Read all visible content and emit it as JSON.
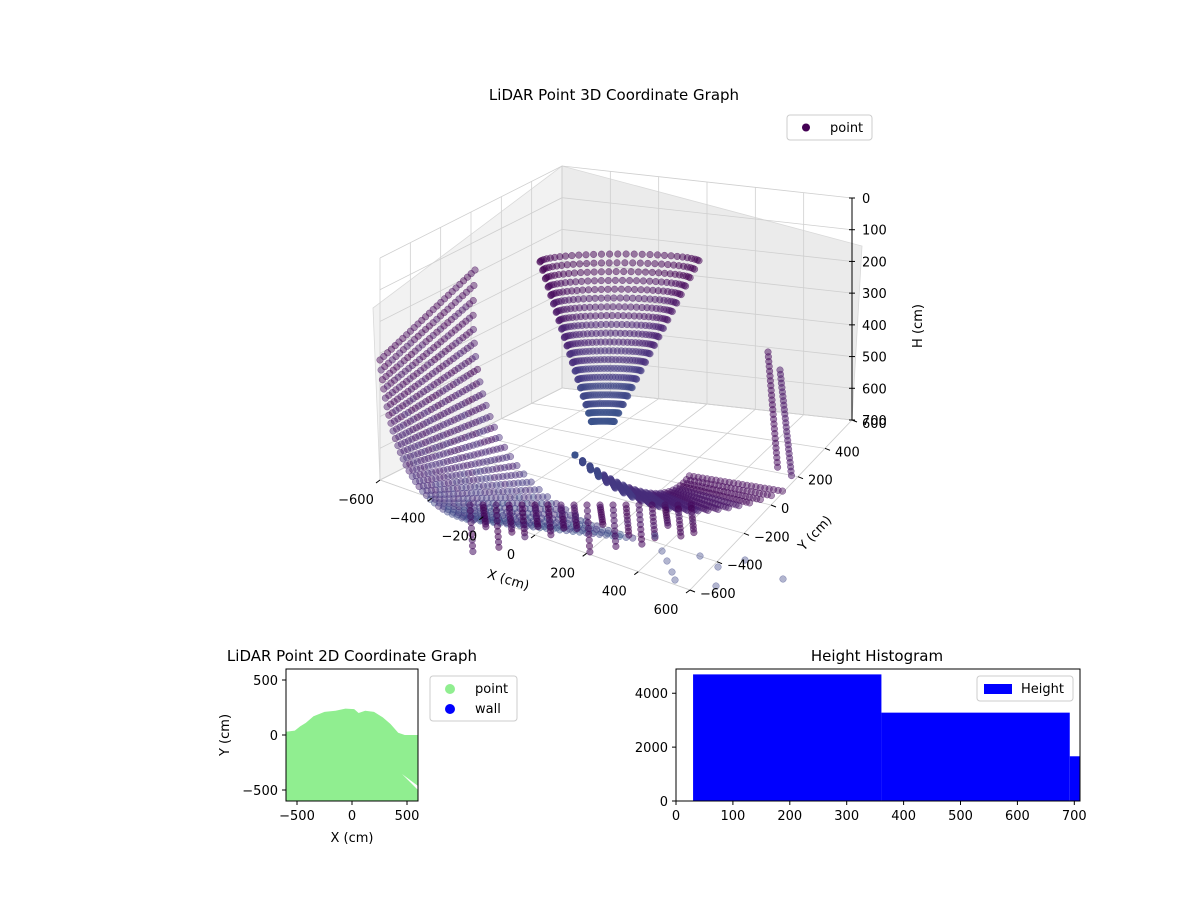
{
  "chart_data": [
    {
      "type": "scatter",
      "projection": "3d",
      "title": "LiDAR Point 3D Coordinate Graph",
      "xlabel": "X (cm)",
      "ylabel": "Y (cm)",
      "zlabel": "H (cm)",
      "xlim": [
        -600,
        600
      ],
      "ylim": [
        -600,
        600
      ],
      "zlim": [
        0,
        700
      ],
      "z_inverted": true,
      "x_ticks": [
        "−600",
        "−400",
        "−200",
        "0",
        "200",
        "400",
        "600"
      ],
      "y_ticks": [
        "−600",
        "−400",
        "−200",
        "0",
        "200",
        "400",
        "600"
      ],
      "z_ticks": [
        "0",
        "100",
        "200",
        "300",
        "400",
        "500",
        "600",
        "700"
      ],
      "grid": true,
      "legend": {
        "placement": "top-right",
        "entries": [
          {
            "label": "point",
            "color": "#440154"
          }
        ]
      },
      "colormap": "viridis",
      "shape": "dense point cloud forming a bowl: central cone fan near the top, curved arcs sweeping down to the left and toward the front-right, scattered isolated points at the front edge"
    },
    {
      "type": "scatter",
      "title": "LiDAR Point 2D Coordinate Graph",
      "xlabel": "X (cm)",
      "ylabel": "Y (cm)",
      "xlim": [
        -600,
        600
      ],
      "ylim": [
        -600,
        600
      ],
      "x_ticks": [
        "−500",
        "0",
        "500"
      ],
      "y_ticks": [
        "−500",
        "0",
        "500"
      ],
      "legend": {
        "placement": "outside-right",
        "entries": [
          {
            "label": "point",
            "color": "#90ee90"
          },
          {
            "label": "wall",
            "color": "#0000ff"
          }
        ]
      },
      "point_region": {
        "description": "filled green region covering the lower part of the plot with a bumpy upper boundary",
        "upper_boundary": [
          {
            "x": -600,
            "y": 30
          },
          {
            "x": -520,
            "y": 40
          },
          {
            "x": -470,
            "y": 80
          },
          {
            "x": -420,
            "y": 110
          },
          {
            "x": -350,
            "y": 170
          },
          {
            "x": -250,
            "y": 210
          },
          {
            "x": -150,
            "y": 220
          },
          {
            "x": -60,
            "y": 240
          },
          {
            "x": 20,
            "y": 235
          },
          {
            "x": 60,
            "y": 200
          },
          {
            "x": 120,
            "y": 220
          },
          {
            "x": 200,
            "y": 210
          },
          {
            "x": 280,
            "y": 160
          },
          {
            "x": 350,
            "y": 100
          },
          {
            "x": 420,
            "y": 20
          },
          {
            "x": 480,
            "y": 0
          },
          {
            "x": 600,
            "y": 0
          }
        ],
        "bottom": -600
      }
    },
    {
      "type": "bar",
      "subtype": "histogram",
      "title": "Height Histogram",
      "xlabel": "",
      "ylabel": "",
      "xlim": [
        0,
        710
      ],
      "ylim": [
        0,
        4900
      ],
      "x_ticks": [
        "0",
        "100",
        "200",
        "300",
        "400",
        "500",
        "600",
        "700"
      ],
      "y_ticks": [
        "0",
        "2000",
        "4000"
      ],
      "bins": [
        {
          "x0": 30,
          "x1": 361,
          "count": 4700
        },
        {
          "x0": 361,
          "x1": 692,
          "count": 3280
        },
        {
          "x0": 692,
          "x1": 710,
          "count": 1660
        }
      ],
      "color": "#0000ff",
      "legend": {
        "placement": "top-right",
        "entries": [
          {
            "label": "Height",
            "color": "#0000ff"
          }
        ]
      }
    }
  ]
}
